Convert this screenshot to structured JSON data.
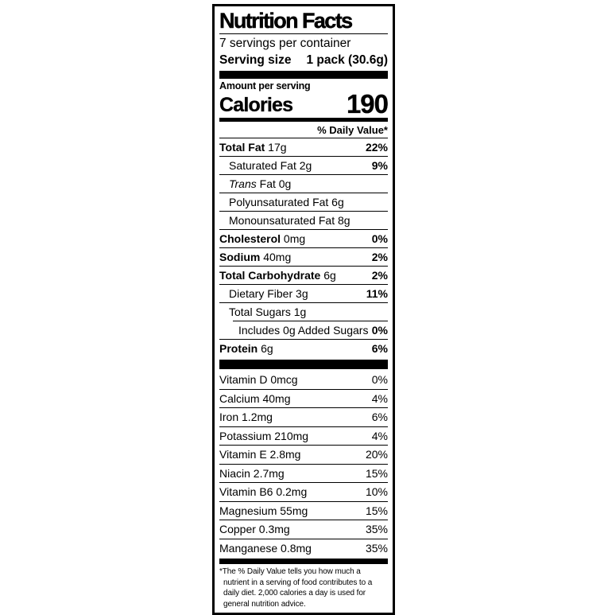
{
  "label": {
    "title": "Nutrition Facts",
    "servings_per_container": "7 servings per container",
    "serving_size": {
      "label": "Serving size",
      "value": "1 pack (30.6g)"
    },
    "amount_per_serving": "Amount per serving",
    "calories": {
      "label": "Calories",
      "value": "190"
    },
    "daily_value_header": "% Daily Value*",
    "nutrients": [
      {
        "name": "Total Fat",
        "style": "bold",
        "rest": " 17g",
        "dv": "22%",
        "indent": 0
      },
      {
        "name": "Saturated Fat",
        "style": "plain",
        "rest": " 2g",
        "dv": "9%",
        "indent": 1
      },
      {
        "name": "Trans",
        "style": "italic",
        "rest": " Fat 0g",
        "dv": "",
        "indent": 1
      },
      {
        "name": "Polyunsaturated Fat",
        "style": "plain",
        "rest": " 6g",
        "dv": "",
        "indent": 1
      },
      {
        "name": "Monounsaturated Fat",
        "style": "plain",
        "rest": " 8g",
        "dv": "",
        "indent": 1
      },
      {
        "name": "Cholesterol",
        "style": "bold",
        "rest": " 0mg",
        "dv": "0%",
        "indent": 0
      },
      {
        "name": "Sodium",
        "style": "bold",
        "rest": " 40mg",
        "dv": "2%",
        "indent": 0
      },
      {
        "name": "Total Carbohydrate",
        "style": "bold",
        "rest": " 6g",
        "dv": "2%",
        "indent": 0
      },
      {
        "name": "Dietary Fiber",
        "style": "plain",
        "rest": " 3g",
        "dv": "11%",
        "indent": 1
      },
      {
        "name": "Total Sugars",
        "style": "plain",
        "rest": " 1g",
        "dv": "",
        "indent": 1
      },
      {
        "name": "Includes 0g Added Sugars",
        "style": "plain",
        "rest": "",
        "dv": "0%",
        "indent": 2,
        "sep_indent": true
      },
      {
        "name": "Protein",
        "style": "bold",
        "rest": " 6g",
        "dv": "6%",
        "indent": 0
      }
    ],
    "vitamins": [
      {
        "name": "Vitamin D 0mcg",
        "dv": "0%"
      },
      {
        "name": "Calcium 40mg",
        "dv": "4%"
      },
      {
        "name": "Iron 1.2mg",
        "dv": "6%"
      },
      {
        "name": "Potassium 210mg",
        "dv": "4%"
      },
      {
        "name": "Vitamin E 2.8mg",
        "dv": "20%"
      },
      {
        "name": "Niacin 2.7mg",
        "dv": "15%"
      },
      {
        "name": "Vitamin B6 0.2mg",
        "dv": "10%"
      },
      {
        "name": "Magnesium 55mg",
        "dv": "15%"
      },
      {
        "name": "Copper 0.3mg",
        "dv": "35%"
      },
      {
        "name": "Manganese 0.8mg",
        "dv": "35%"
      }
    ],
    "footnote": "*The % Daily Value tells you how much a nutrient in a serving of food contributes to a daily diet. 2,000 calories a day is used for general nutrition advice.",
    "colors": {
      "text": "#000000",
      "background": "#ffffff"
    }
  }
}
